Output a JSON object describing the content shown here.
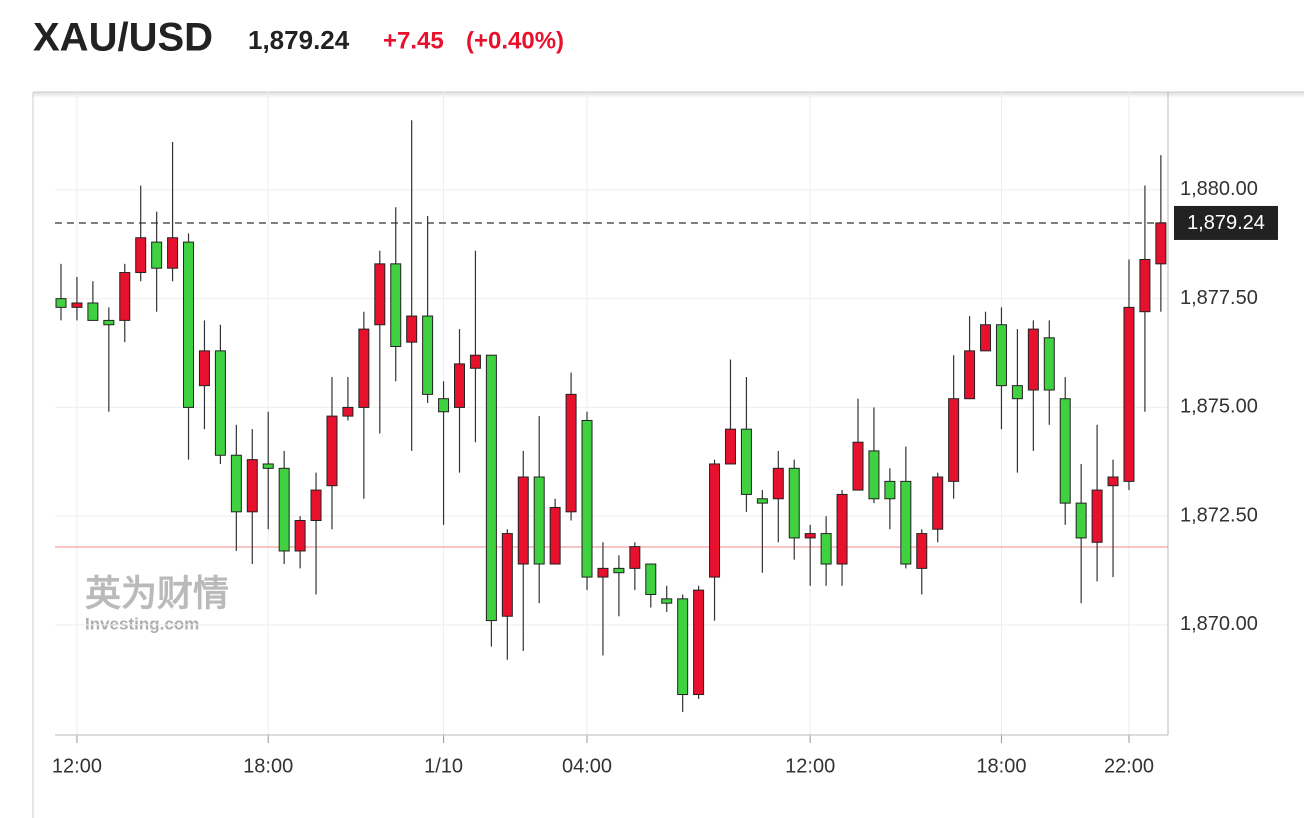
{
  "chart_data": {
    "type": "candlestick",
    "title": "XAU/USD",
    "last_price": {
      "value": 1879.24,
      "label": "1,879.24"
    },
    "change": "+7.45",
    "change_pct": "(+0.40%)",
    "watermark": [
      "英为财情",
      "Investing.com"
    ],
    "prev_close": 1871.79,
    "up_color": "#e8112d",
    "down_color": "#3fd13f",
    "categories": [
      null,
      "12:00",
      null,
      null,
      null,
      null,
      null,
      null,
      null,
      null,
      null,
      null,
      null,
      "18:00",
      null,
      null,
      null,
      null,
      null,
      null,
      null,
      null,
      null,
      null,
      "1/10",
      null,
      null,
      null,
      null,
      null,
      null,
      null,
      null,
      "04:00",
      null,
      null,
      null,
      null,
      null,
      null,
      null,
      null,
      null,
      null,
      null,
      null,
      null,
      "12:00",
      null,
      null,
      null,
      null,
      null,
      null,
      null,
      null,
      null,
      null,
      null,
      "18:00",
      null,
      null,
      null,
      null,
      null,
      null,
      null,
      "22:00",
      null,
      null
    ],
    "open": [
      1877.5,
      1877.3,
      1877.4,
      1877.0,
      1877.0,
      1878.1,
      1878.8,
      1878.2,
      1878.8,
      1875.5,
      1876.3,
      1873.9,
      1872.6,
      1873.7,
      1873.6,
      1871.7,
      1872.4,
      1873.2,
      1874.8,
      1875.0,
      1876.9,
      1878.3,
      1876.5,
      1877.1,
      1875.2,
      1875.0,
      1875.9,
      1876.2,
      1870.2,
      1871.4,
      1873.4,
      1871.4,
      1872.6,
      1874.7,
      1871.1,
      1871.3,
      1871.3,
      1871.4,
      1870.6,
      1870.6,
      1868.4,
      1871.1,
      1873.7,
      1874.5,
      1872.9,
      1872.9,
      1873.6,
      1872.0,
      1872.1,
      1871.4,
      1873.1,
      1874.0,
      1873.3,
      1873.3,
      1871.3,
      1872.2,
      1873.3,
      1875.2,
      1876.3,
      1876.9,
      1875.5,
      1875.4,
      1876.6,
      1875.2,
      1872.8,
      1871.9,
      1873.2,
      1873.3,
      1877.2,
      1878.3
    ],
    "high": [
      1878.3,
      1878.0,
      1877.9,
      1877.3,
      1878.3,
      1880.1,
      1879.5,
      1881.1,
      1879.0,
      1877.0,
      1876.9,
      1874.6,
      1874.5,
      1874.9,
      1874.0,
      1872.5,
      1873.5,
      1875.7,
      1875.7,
      1877.2,
      1878.6,
      1879.6,
      1881.6,
      1879.4,
      1875.6,
      1876.8,
      1878.6,
      1876.2,
      1872.2,
      1874.0,
      1874.8,
      1872.9,
      1875.8,
      1874.9,
      1871.9,
      1871.6,
      1871.9,
      1871.4,
      1870.9,
      1870.7,
      1870.9,
      1873.8,
      1876.1,
      1875.7,
      1873.1,
      1874.0,
      1873.8,
      1872.3,
      1872.5,
      1873.1,
      1875.2,
      1875.0,
      1873.6,
      1874.1,
      1872.2,
      1873.5,
      1876.2,
      1877.1,
      1877.2,
      1877.3,
      1876.8,
      1877.0,
      1877.0,
      1875.7,
      1873.7,
      1874.6,
      1873.8,
      1878.4,
      1880.1,
      1880.8
    ],
    "low": [
      1877.0,
      1877.0,
      1877.0,
      1874.9,
      1876.5,
      1877.9,
      1877.2,
      1877.9,
      1873.8,
      1874.5,
      1873.7,
      1871.7,
      1871.4,
      1872.2,
      1871.4,
      1871.3,
      1870.7,
      1872.2,
      1874.7,
      1872.9,
      1874.4,
      1875.6,
      1874.0,
      1875.1,
      1872.3,
      1873.5,
      1874.2,
      1869.5,
      1869.2,
      1869.4,
      1870.5,
      1871.4,
      1872.4,
      1870.8,
      1869.3,
      1870.2,
      1870.8,
      1870.4,
      1870.3,
      1868.0,
      1868.3,
      1870.1,
      1873.7,
      1872.6,
      1871.2,
      1871.9,
      1871.5,
      1870.9,
      1870.9,
      1870.9,
      1873.1,
      1872.8,
      1872.2,
      1871.3,
      1870.7,
      1871.9,
      1872.9,
      1875.2,
      1876.3,
      1874.5,
      1873.5,
      1874.0,
      1874.6,
      1872.3,
      1870.5,
      1871.0,
      1871.1,
      1873.1,
      1874.9,
      1877.2
    ],
    "close": [
      1877.3,
      1877.4,
      1877.0,
      1876.9,
      1878.1,
      1878.9,
      1878.2,
      1878.9,
      1875.0,
      1876.3,
      1873.9,
      1872.6,
      1873.8,
      1873.6,
      1871.7,
      1872.4,
      1873.1,
      1874.8,
      1875.0,
      1876.8,
      1878.3,
      1876.4,
      1877.1,
      1875.3,
      1874.9,
      1876.0,
      1876.2,
      1870.1,
      1872.1,
      1873.4,
      1871.4,
      1872.7,
      1875.3,
      1871.1,
      1871.3,
      1871.2,
      1871.8,
      1870.7,
      1870.5,
      1868.4,
      1870.8,
      1873.7,
      1874.5,
      1873.0,
      1872.8,
      1873.6,
      1872.0,
      1872.1,
      1871.4,
      1873.0,
      1874.2,
      1872.9,
      1872.9,
      1871.4,
      1872.1,
      1873.4,
      1875.2,
      1876.3,
      1876.9,
      1875.5,
      1875.2,
      1876.8,
      1875.4,
      1872.8,
      1872.0,
      1873.1,
      1873.4,
      1877.3,
      1878.4,
      1879.24
    ],
    "ylim": [
      1867.47,
      1882.25
    ],
    "yticks": [
      {
        "value": 1870,
        "label": "1,870.00"
      },
      {
        "value": 1872.5,
        "label": "1,872.50"
      },
      {
        "value": 1875,
        "label": "1,875.00"
      },
      {
        "value": 1877.5,
        "label": "1,877.50"
      },
      {
        "value": 1880,
        "label": "1,880.00"
      }
    ],
    "grid": true
  }
}
